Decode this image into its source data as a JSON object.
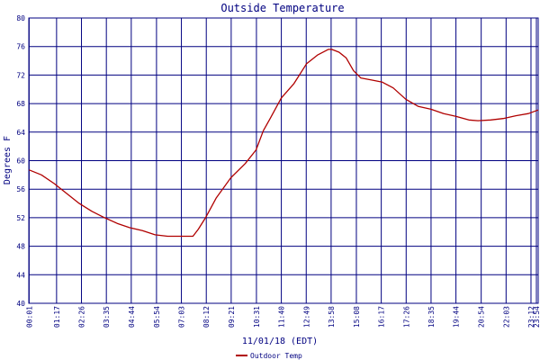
{
  "chart_data": {
    "type": "line",
    "title": "Outside Temperature",
    "xlabel": "11/01/18 (EDT)",
    "ylabel": "Degrees F",
    "ylim": [
      40,
      80
    ],
    "yticks": [
      40,
      44,
      48,
      52,
      56,
      60,
      64,
      68,
      72,
      76,
      80
    ],
    "xlim": [
      0,
      1412
    ],
    "x_tick_labels": [
      "00:01",
      "01:17",
      "02:26",
      "03:35",
      "04:44",
      "05:54",
      "07:03",
      "08:12",
      "09:21",
      "10:31",
      "11:40",
      "12:49",
      "13:58",
      "15:08",
      "16:17",
      "17:26",
      "18:35",
      "19:44",
      "20:54",
      "22:03",
      "23:12",
      "23:54"
    ],
    "x_tick_minutes": [
      1,
      77,
      146,
      215,
      284,
      354,
      423,
      492,
      561,
      631,
      700,
      769,
      838,
      908,
      977,
      1046,
      1115,
      1184,
      1254,
      1323,
      1392,
      1434
    ],
    "grid": true,
    "legend_position": "bottom-center",
    "colors": {
      "background": "#ffffff",
      "grid": "#000080",
      "axis_text": "#000080",
      "series": "#b00000"
    },
    "series": [
      {
        "name": "Outdoor Temp",
        "x": [
          1,
          35,
          70,
          105,
          140,
          175,
          210,
          245,
          280,
          315,
          350,
          385,
          420,
          455,
          470,
          490,
          520,
          560,
          600,
          630,
          650,
          670,
          700,
          735,
          770,
          800,
          830,
          840,
          860,
          880,
          900,
          920,
          950,
          980,
          1010,
          1045,
          1080,
          1115,
          1150,
          1185,
          1220,
          1245,
          1280,
          1315,
          1350,
          1385,
          1412
        ],
        "values": [
          58.7,
          58.0,
          56.8,
          55.4,
          54.0,
          52.9,
          52.0,
          51.2,
          50.6,
          50.2,
          49.6,
          49.4,
          49.4,
          49.4,
          50.4,
          52.0,
          54.8,
          57.6,
          59.6,
          61.5,
          64.2,
          66.0,
          68.8,
          70.8,
          73.6,
          74.8,
          75.6,
          75.6,
          75.2,
          74.4,
          72.6,
          71.6,
          71.3,
          71.0,
          70.2,
          68.6,
          67.6,
          67.2,
          66.6,
          66.2,
          65.7,
          65.6,
          65.7,
          65.9,
          66.3,
          66.6,
          67.1
        ]
      }
    ]
  }
}
